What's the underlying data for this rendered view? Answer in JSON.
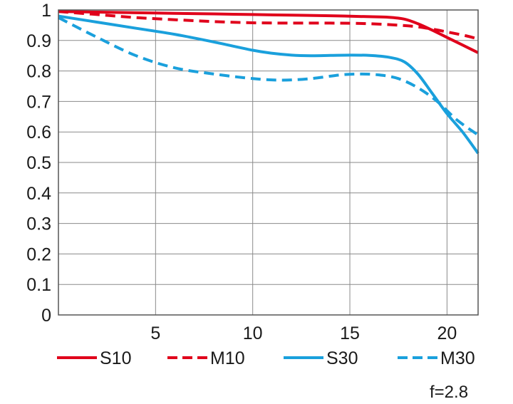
{
  "chart_data": {
    "type": "line",
    "title": "",
    "xlabel": "",
    "ylabel": "",
    "xlim": [
      0,
      21.6
    ],
    "ylim": [
      0,
      1
    ],
    "x_ticks": [
      "5",
      "10",
      "15",
      "20"
    ],
    "y_ticks": [
      "0",
      "0.1",
      "0.2",
      "0.3",
      "0.4",
      "0.5",
      "0.6",
      "0.7",
      "0.8",
      "0.9",
      "1"
    ],
    "grid": true,
    "legend_position": "bottom",
    "annotation": "f=2.8",
    "series": [
      {
        "name": "S10",
        "color": "#e0001b",
        "dash": "solid",
        "x": [
          0,
          2,
          4,
          6,
          8,
          10,
          12,
          14,
          16,
          17,
          17.8,
          18.5,
          19.2,
          20,
          20.8,
          21.6
        ],
        "y": [
          0.995,
          0.993,
          0.991,
          0.989,
          0.987,
          0.985,
          0.983,
          0.981,
          0.978,
          0.976,
          0.97,
          0.955,
          0.935,
          0.91,
          0.885,
          0.86
        ]
      },
      {
        "name": "M10",
        "color": "#e0001b",
        "dash": "dashed",
        "x": [
          0,
          2,
          4,
          6,
          8,
          10,
          12,
          14,
          16,
          18,
          19,
          20,
          21,
          21.6
        ],
        "y": [
          0.995,
          0.985,
          0.975,
          0.968,
          0.962,
          0.958,
          0.957,
          0.957,
          0.955,
          0.948,
          0.94,
          0.928,
          0.915,
          0.905
        ]
      },
      {
        "name": "S30",
        "color": "#1aa0dc",
        "dash": "solid",
        "x": [
          0,
          2,
          4,
          6,
          8,
          10,
          11,
          12,
          13,
          14,
          15,
          16,
          17,
          17.8,
          18.5,
          19.2,
          20,
          20.8,
          21.6
        ],
        "y": [
          0.98,
          0.96,
          0.94,
          0.92,
          0.895,
          0.868,
          0.858,
          0.852,
          0.85,
          0.851,
          0.852,
          0.851,
          0.845,
          0.83,
          0.79,
          0.73,
          0.66,
          0.6,
          0.53
        ]
      },
      {
        "name": "M30",
        "color": "#1aa0dc",
        "dash": "dashed",
        "x": [
          0,
          2,
          4,
          6,
          8,
          10,
          11.5,
          13,
          14.5,
          15.5,
          16.5,
          17.5,
          18.5,
          19.5,
          20.5,
          21.6
        ],
        "y": [
          0.975,
          0.91,
          0.85,
          0.81,
          0.79,
          0.775,
          0.77,
          0.775,
          0.787,
          0.79,
          0.787,
          0.775,
          0.745,
          0.7,
          0.64,
          0.59
        ]
      }
    ]
  }
}
